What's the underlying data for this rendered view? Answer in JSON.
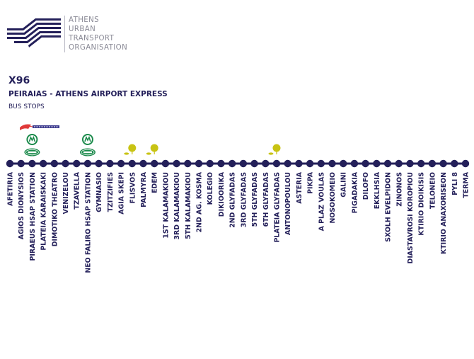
{
  "logo": {
    "lines": [
      "ATHENS",
      "URBAN",
      "TRANSPORT",
      "ORGANISATION"
    ],
    "color": "#24205a"
  },
  "route": {
    "code": "X96",
    "name": "PEIRAIAS - ATHENS AIRPORT EXPRESS",
    "subtitle": "BUS STOPS"
  },
  "colors": {
    "line": "#24205a",
    "metro": "#1b8a4b",
    "tram": "#c8c313",
    "text": "#24205a"
  },
  "stops": [
    {
      "name": "AFETIRIA"
    },
    {
      "name": "AGIOS DIONYSIOS"
    },
    {
      "name": "PIRAEUS HSAP STATION",
      "connections": [
        "metro-icon",
        "suburban-rail-icon"
      ]
    },
    {
      "name": "PLATEIA KARAISKAKI"
    },
    {
      "name": "DIMOTIKO THEATRO"
    },
    {
      "name": "VENIZELOU"
    },
    {
      "name": "TZAVELLA"
    },
    {
      "name": "NEO FALIRO HSAP STATION",
      "connections": [
        "metro-icon",
        "suburban-rail-icon"
      ]
    },
    {
      "name": "GYMNASIO"
    },
    {
      "name": "TZITZIFIES"
    },
    {
      "name": "AGIA SKEPI"
    },
    {
      "name": "FLISVOS",
      "connections": [
        "tram-icon"
      ]
    },
    {
      "name": "PALMYRA"
    },
    {
      "name": "EDEM",
      "connections": [
        "tram-icon"
      ]
    },
    {
      "name": "1ST KALAMAKIOU"
    },
    {
      "name": "3RD KALAMAKIOU"
    },
    {
      "name": "5TH KALAMAKIOU"
    },
    {
      "name": "2ND AG. KOSMA"
    },
    {
      "name": "KOLEGIO"
    },
    {
      "name": "DIKIOORIKA"
    },
    {
      "name": "2ND GLYFADAS"
    },
    {
      "name": "3RD GLYFADAS"
    },
    {
      "name": "5TH GLYFADAS"
    },
    {
      "name": "6TH GLYFADAS"
    },
    {
      "name": "PLATEIA GLYFADAS",
      "connections": [
        "tram-icon"
      ]
    },
    {
      "name": "ANTONOPOULOU"
    },
    {
      "name": "ASTERIA"
    },
    {
      "name": "PIKPA"
    },
    {
      "name": "A PLAZ VOULAS"
    },
    {
      "name": "NOSOKOMEIO"
    },
    {
      "name": "GALINI"
    },
    {
      "name": "PIGADAKIA"
    },
    {
      "name": "DILOFO"
    },
    {
      "name": "EKKLHSIA"
    },
    {
      "name": "SXOLH EVELPIDON"
    },
    {
      "name": "ZINONOS"
    },
    {
      "name": "DIASTAVROSI KOROPIOU"
    },
    {
      "name": "KTIRIO DIOIKISIS"
    },
    {
      "name": "TELONEIO"
    },
    {
      "name": "KTIRIO ANAXORISEON"
    },
    {
      "name": "PYLI 8"
    },
    {
      "name": "TERMA"
    }
  ]
}
